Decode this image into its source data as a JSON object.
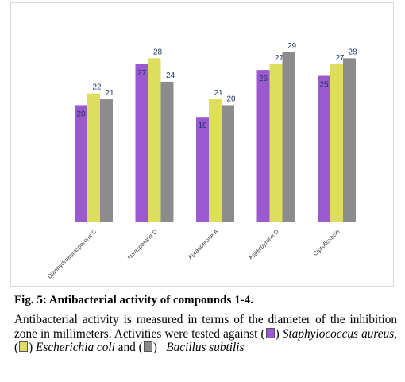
{
  "chart_data": {
    "type": "bar",
    "categories": [
      "Dianhydroaurasperone C",
      "Aurasperone D",
      "Aurasperone A",
      "Asperpyrone D",
      "Ciprofloxacin"
    ],
    "series": [
      {
        "name": "Staphylococcus aureus",
        "color": "#9b59d0",
        "values": [
          20,
          27,
          18,
          26,
          25
        ]
      },
      {
        "name": "Escherichia coli",
        "color": "#dede5e",
        "values": [
          22,
          28,
          21,
          27,
          27
        ]
      },
      {
        "name": "Bacillus subtilis",
        "color": "#8c8c8c",
        "values": [
          21,
          24,
          20,
          29,
          28
        ]
      }
    ],
    "value_labels": [
      [
        "20",
        "22",
        "21"
      ],
      [
        "27",
        "28",
        "24"
      ],
      [
        "18",
        "21",
        "20"
      ],
      [
        "26",
        "27",
        "29"
      ],
      [
        "25",
        "27",
        "28"
      ]
    ],
    "ylim": [
      0,
      30
    ],
    "grid": false,
    "legend": "none"
  },
  "caption": {
    "title": "Fig. 5: Antibacterial activity of compounds 1-4.",
    "text_1": "Antibacterial activity is measured in terms of the diameter of the inhibition zone in millimeters. Activities were tested against (",
    "org_1": "Staphylococcus aureus,",
    "text_2": " (",
    "org_2": "Escherichia coli",
    "text_3": " and (",
    "org_3": "Bacillus subtilis"
  }
}
